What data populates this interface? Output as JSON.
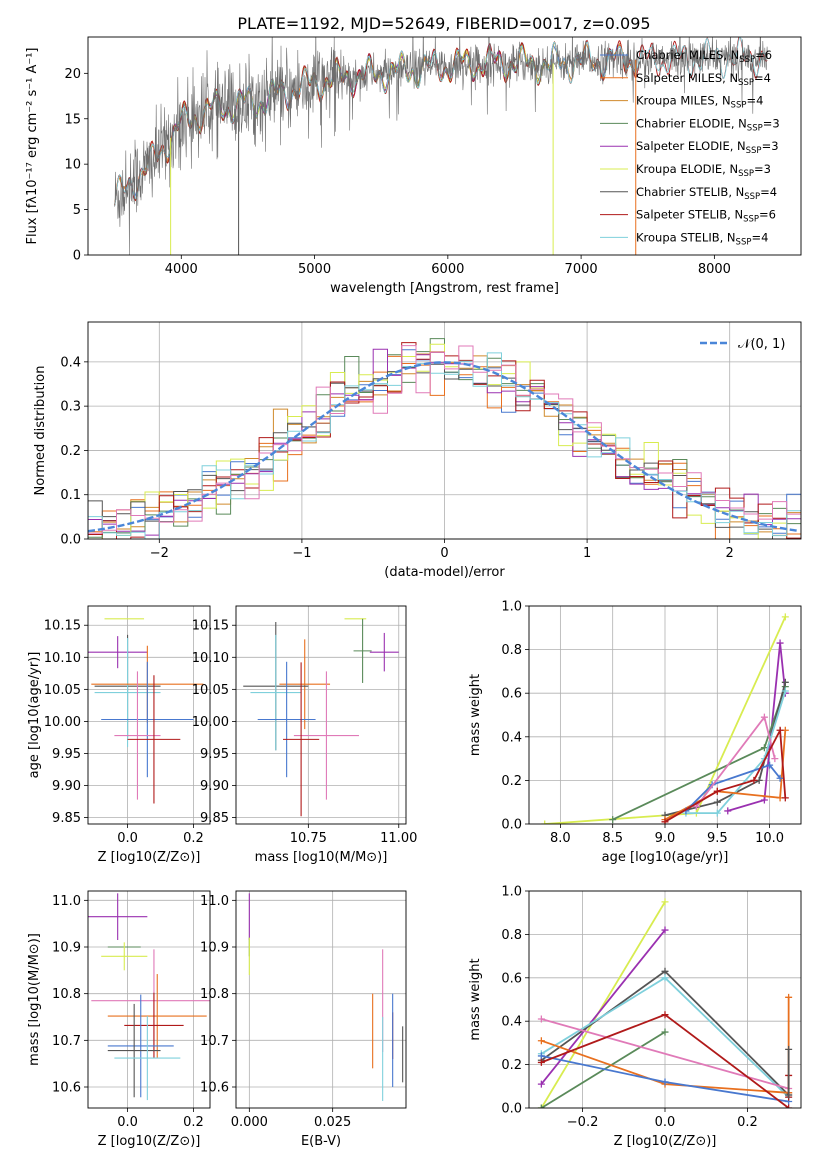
{
  "figure": {
    "title": "PLATE=1192, MJD=52649, FIBERID=0017, z=0.095"
  },
  "colors": {
    "Chabrier MILES": "#4878cf",
    "Salpeter MILES": "#e8701f",
    "Kroupa MILES": "#d08a2c",
    "Chabrier ELODIE": "#5a8a5a",
    "Salpeter ELODIE": "#9a30b0",
    "Kroupa ELODIE": "#d8ec50",
    "Chabrier STELIB": "#555555",
    "Salpeter STELIB": "#b01a1a",
    "Kroupa STELIB": "#7fd0dc",
    "Extra": "#e07ab8"
  },
  "chart_data": [
    {
      "id": "spectrum",
      "type": "line",
      "xlabel": "wavelength [Angstrom, rest frame]",
      "ylabel": "Flux [fλ10⁻¹⁷ erg cm⁻² s⁻¹ A⁻¹]",
      "xlim": [
        3300,
        8650
      ],
      "ylim": [
        0,
        24
      ],
      "xticks": [
        4000,
        5000,
        6000,
        7000,
        8000
      ],
      "yticks": [
        0,
        5,
        10,
        15,
        20
      ],
      "legend_position": "top-right",
      "legend": [
        "Chabrier MILES, N_SSP=6",
        "Salpeter MILES, N_SSP=4",
        "Kroupa MILES, N_SSP=4",
        "Chabrier ELODIE, N_SSP=3",
        "Salpeter ELODIE, N_SSP=3",
        "Kroupa ELODIE, N_SSP=3",
        "Chabrier STELIB, N_SSP=4",
        "Salpeter STELIB, N_SSP=6",
        "Kroupa STELIB, N_SSP=4"
      ],
      "continuum": [
        [
          3500,
          6
        ],
        [
          3600,
          7.5
        ],
        [
          3700,
          9
        ],
        [
          3800,
          10.5
        ],
        [
          3900,
          12.5
        ],
        [
          4000,
          14.5
        ],
        [
          4200,
          16
        ],
        [
          4400,
          16.5
        ],
        [
          4600,
          17
        ],
        [
          4800,
          18
        ],
        [
          5000,
          19
        ],
        [
          5200,
          19.5
        ],
        [
          5500,
          20
        ],
        [
          5800,
          20.5
        ],
        [
          6100,
          21
        ],
        [
          6400,
          21.2
        ],
        [
          6700,
          21
        ],
        [
          7000,
          21.3
        ],
        [
          7300,
          21.5
        ],
        [
          7600,
          21.5
        ],
        [
          8000,
          21.7
        ],
        [
          8400,
          21.8
        ]
      ]
    },
    {
      "id": "residuals",
      "type": "histogram",
      "xlabel": "(data-model)/error",
      "ylabel": "Normed distribution",
      "xlim": [
        -2.5,
        2.5
      ],
      "ylim": [
        0,
        0.49
      ],
      "xticks": [
        -2,
        -1,
        0,
        1,
        2
      ],
      "yticks": [
        0.0,
        0.1,
        0.2,
        0.3,
        0.4
      ],
      "grid": true,
      "bin_width": 0.1,
      "reference_curve": "N(0,1)",
      "legend": [
        "𝒩(0, 1)"
      ],
      "legend_position": "top-right"
    },
    {
      "id": "age_vs_Z",
      "type": "scatter",
      "xlabel": "Z [log10(Z/Z⊙)]",
      "ylabel": "age  [log10(age/yr)]",
      "xlim": [
        -0.12,
        0.25
      ],
      "ylim": [
        9.84,
        10.18
      ],
      "xticks": [
        0.0,
        0.2
      ],
      "yticks": [
        9.85,
        9.9,
        9.95,
        10.0,
        10.05,
        10.1,
        10.15
      ],
      "grid": true,
      "points": [
        {
          "model": "Kroupa ELODIE",
          "x": -0.01,
          "y": 10.16,
          "xerr": 0.06,
          "yerr": 0.0
        },
        {
          "model": "Salpeter ELODIE",
          "x": -0.03,
          "y": 10.108,
          "xerr": 0.09,
          "yerr": 0.025
        },
        {
          "model": "Chabrier STELIB",
          "x": 0.0,
          "y": 10.055,
          "xerr": 0.1,
          "yerr": 0.08
        },
        {
          "model": "Kroupa STELIB",
          "x": 0.0,
          "y": 10.045,
          "xerr": 0.1,
          "yerr": 0.085
        },
        {
          "model": "Salpeter MILES",
          "x": 0.06,
          "y": 10.058,
          "xerr": 0.17,
          "yerr": 0.06
        },
        {
          "model": "Chabrier MILES",
          "x": 0.06,
          "y": 10.003,
          "xerr": 0.14,
          "yerr": 0.09
        },
        {
          "model": "Extra",
          "x": 0.03,
          "y": 9.978,
          "xerr": 0.07,
          "yerr": 0.1
        },
        {
          "model": "Salpeter STELIB",
          "x": 0.08,
          "y": 9.972,
          "xerr": 0.08,
          "yerr": 0.1
        }
      ]
    },
    {
      "id": "age_vs_mass",
      "type": "scatter",
      "xlabel": "mass [log10(M/M⊙)]",
      "ylabel": "",
      "xlim": [
        10.55,
        11.02
      ],
      "ylim": [
        9.84,
        10.18
      ],
      "xticks": [
        10.75,
        11.0
      ],
      "yticks": [
        9.85,
        9.9,
        9.95,
        10.0,
        10.05,
        10.1,
        10.15
      ],
      "grid": true,
      "points": [
        {
          "model": "Kroupa ELODIE",
          "x": 10.88,
          "y": 10.16,
          "xerr": 0.03,
          "yerr": 0.0
        },
        {
          "model": "Chabrier ELODIE",
          "x": 10.9,
          "y": 10.11,
          "xerr": 0.025,
          "yerr": 0.05
        },
        {
          "model": "Salpeter ELODIE",
          "x": 10.96,
          "y": 10.108,
          "xerr": 0.04,
          "yerr": 0.03
        },
        {
          "model": "Salpeter MILES",
          "x": 10.74,
          "y": 10.058,
          "xerr": 0.07,
          "yerr": 0.07
        },
        {
          "model": "Chabrier STELIB",
          "x": 10.66,
          "y": 10.055,
          "xerr": 0.09,
          "yerr": 0.1
        },
        {
          "model": "Kroupa STELIB",
          "x": 10.66,
          "y": 10.045,
          "xerr": 0.07,
          "yerr": 0.09
        },
        {
          "model": "Chabrier MILES",
          "x": 10.69,
          "y": 10.003,
          "xerr": 0.08,
          "yerr": 0.09
        },
        {
          "model": "Extra",
          "x": 10.8,
          "y": 9.978,
          "xerr": 0.09,
          "yerr": 0.1
        },
        {
          "model": "Salpeter STELIB",
          "x": 10.73,
          "y": 9.972,
          "xerr": 0.05,
          "yerr": 0.12
        }
      ]
    },
    {
      "id": "massweight_vs_age",
      "type": "line",
      "xlabel": "age  [log10(age/yr)]",
      "ylabel": "mass weight",
      "xlim": [
        7.7,
        10.3
      ],
      "ylim": [
        0.0,
        1.0
      ],
      "xticks": [
        8.0,
        8.5,
        9.0,
        9.5,
        10.0
      ],
      "yticks": [
        0.0,
        0.2,
        0.4,
        0.6,
        0.8,
        1.0
      ],
      "grid": true,
      "series": [
        {
          "model": "Kroupa ELODIE",
          "x": [
            7.85,
            9.3,
            10.15
          ],
          "y": [
            0.0,
            0.05,
            0.95
          ]
        },
        {
          "model": "Salpeter ELODIE",
          "x": [
            9.6,
            9.95,
            10.1,
            10.15
          ],
          "y": [
            0.06,
            0.11,
            0.83,
            0.6
          ]
        },
        {
          "model": "Chabrier ELODIE",
          "x": [
            8.5,
            9.95,
            10.15
          ],
          "y": [
            0.02,
            0.35,
            0.63
          ]
        },
        {
          "model": "Chabrier STELIB",
          "x": [
            9.0,
            9.5,
            9.9,
            10.15
          ],
          "y": [
            0.04,
            0.1,
            0.2,
            0.65
          ]
        },
        {
          "model": "Kroupa STELIB",
          "x": [
            9.2,
            9.5,
            9.95,
            10.15
          ],
          "y": [
            0.05,
            0.05,
            0.3,
            0.61
          ]
        },
        {
          "model": "Salpeter MILES",
          "x": [
            9.0,
            9.5,
            10.1,
            10.15
          ],
          "y": [
            0.02,
            0.15,
            0.12,
            0.43
          ]
        },
        {
          "model": "Chabrier MILES",
          "x": [
            9.2,
            9.45,
            10.0,
            10.1
          ],
          "y": [
            0.06,
            0.18,
            0.27,
            0.21
          ]
        },
        {
          "model": "Extra",
          "x": [
            9.3,
            9.95,
            10.05
          ],
          "y": [
            0.08,
            0.49,
            0.3
          ]
        },
        {
          "model": "Salpeter STELIB",
          "x": [
            9.0,
            9.5,
            9.85,
            10.1,
            10.15
          ],
          "y": [
            0.01,
            0.15,
            0.2,
            0.43,
            0.12
          ]
        }
      ]
    },
    {
      "id": "mass_vs_Z",
      "type": "scatter",
      "xlabel": "Z [log10(Z/Z⊙)]",
      "ylabel": "mass [log10(M/M⊙)]",
      "xlim": [
        -0.12,
        0.25
      ],
      "ylim": [
        10.555,
        11.02
      ],
      "xticks": [
        0.0,
        0.2
      ],
      "yticks": [
        10.6,
        10.7,
        10.8,
        10.9,
        11.0
      ],
      "grid": true,
      "points": [
        {
          "model": "Salpeter ELODIE",
          "x": -0.03,
          "y": 10.965,
          "xerr": 0.09,
          "yerr": 0.05
        },
        {
          "model": "Chabrier ELODIE",
          "x": -0.01,
          "y": 10.9,
          "xerr": 0.05,
          "yerr": 0.0
        },
        {
          "model": "Kroupa ELODIE",
          "x": -0.01,
          "y": 10.88,
          "xerr": 0.07,
          "yerr": 0.03
        },
        {
          "model": "Extra",
          "x": 0.08,
          "y": 10.785,
          "xerr": 0.19,
          "yerr": 0.11
        },
        {
          "model": "Salpeter MILES",
          "x": 0.09,
          "y": 10.752,
          "xerr": 0.15,
          "yerr": 0.09
        },
        {
          "model": "Salpeter STELIB",
          "x": 0.08,
          "y": 10.732,
          "xerr": 0.09,
          "yerr": 0.07
        },
        {
          "model": "Chabrier MILES",
          "x": 0.04,
          "y": 10.688,
          "xerr": 0.1,
          "yerr": 0.11
        },
        {
          "model": "Chabrier STELIB",
          "x": 0.02,
          "y": 10.678,
          "xerr": 0.08,
          "yerr": 0.1
        },
        {
          "model": "Kroupa STELIB",
          "x": 0.06,
          "y": 10.662,
          "xerr": 0.1,
          "yerr": 0.09
        }
      ]
    },
    {
      "id": "mass_vs_EBV",
      "type": "scatter",
      "xlabel": "E(B-V)",
      "ylabel": "",
      "xlim": [
        -0.004,
        0.047
      ],
      "ylim": [
        10.555,
        11.02
      ],
      "xticks": [
        0.0,
        0.025
      ],
      "yticks": [
        10.6,
        10.7,
        10.8,
        10.9,
        11.0
      ],
      "grid": true,
      "points": [
        {
          "model": "Salpeter ELODIE",
          "x": 0.0,
          "y": 10.965,
          "xerr": 0,
          "yerr": 0.05
        },
        {
          "model": "Chabrier ELODIE",
          "x": 0.0,
          "y": 10.9,
          "xerr": 0,
          "yerr": 0.02
        },
        {
          "model": "Kroupa ELODIE",
          "x": 0.0,
          "y": 10.88,
          "xerr": 0,
          "yerr": 0.04
        },
        {
          "model": "Extra",
          "x": 0.04,
          "y": 10.785,
          "xerr": 0,
          "yerr": 0.11
        },
        {
          "model": "Salpeter MILES",
          "x": 0.037,
          "y": 10.72,
          "xerr": 0,
          "yerr": 0.08
        },
        {
          "model": "Salpeter STELIB",
          "x": 0.043,
          "y": 10.71,
          "xerr": 0,
          "yerr": 0.05
        },
        {
          "model": "Chabrier MILES",
          "x": 0.043,
          "y": 10.7,
          "xerr": 0,
          "yerr": 0.1
        },
        {
          "model": "Chabrier STELIB",
          "x": 0.046,
          "y": 10.67,
          "xerr": 0,
          "yerr": 0.06
        },
        {
          "model": "Kroupa STELIB",
          "x": 0.04,
          "y": 10.66,
          "xerr": 0,
          "yerr": 0.09
        }
      ]
    },
    {
      "id": "massweight_vs_Z",
      "type": "line",
      "xlabel": "Z [log10(Z/Z⊙)]",
      "ylabel": "mass weight",
      "xlim": [
        -0.33,
        0.33
      ],
      "ylim": [
        0.0,
        1.0
      ],
      "xticks": [
        -0.2,
        0.0,
        0.2
      ],
      "yticks": [
        0.0,
        0.2,
        0.4,
        0.6,
        0.8,
        1.0
      ],
      "grid": true,
      "series": [
        {
          "model": "Kroupa ELODIE",
          "x": [
            -0.3,
            0.0
          ],
          "y": [
            0.0,
            0.95
          ]
        },
        {
          "model": "Salpeter ELODIE",
          "x": [
            -0.3,
            0.0
          ],
          "y": [
            0.11,
            0.82
          ]
        },
        {
          "model": "Chabrier ELODIE",
          "x": [
            -0.3,
            0.0
          ],
          "y": [
            0.0,
            0.35
          ]
        },
        {
          "model": "Chabrier STELIB",
          "x": [
            -0.3,
            0.0,
            0.3
          ],
          "y": [
            0.22,
            0.63,
            0.06
          ]
        },
        {
          "model": "Kroupa STELIB",
          "x": [
            -0.3,
            0.0,
            0.3
          ],
          "y": [
            0.25,
            0.6,
            0.05
          ]
        },
        {
          "model": "Extra",
          "x": [
            -0.3,
            0.3
          ],
          "y": [
            0.41,
            0.09
          ]
        },
        {
          "model": "Salpeter MILES",
          "x": [
            -0.3,
            0.0,
            0.3
          ],
          "y": [
            0.31,
            0.11,
            0.07
          ]
        },
        {
          "model": "Chabrier MILES",
          "x": [
            -0.3,
            0.0,
            0.3
          ],
          "y": [
            0.24,
            0.12,
            0.03
          ]
        },
        {
          "model": "Salpeter STELIB",
          "x": [
            -0.3,
            0.0,
            0.3
          ],
          "y": [
            0.21,
            0.43,
            0.0
          ]
        }
      ],
      "markers_at_x03": [
        {
          "model": "Salpeter MILES",
          "y": [
            0.07,
            0.51
          ]
        },
        {
          "model": "Salpeter STELIB",
          "y": [
            0.05,
            0.15
          ]
        },
        {
          "model": "Chabrier STELIB",
          "y": [
            0.06,
            0.27
          ]
        }
      ]
    }
  ]
}
